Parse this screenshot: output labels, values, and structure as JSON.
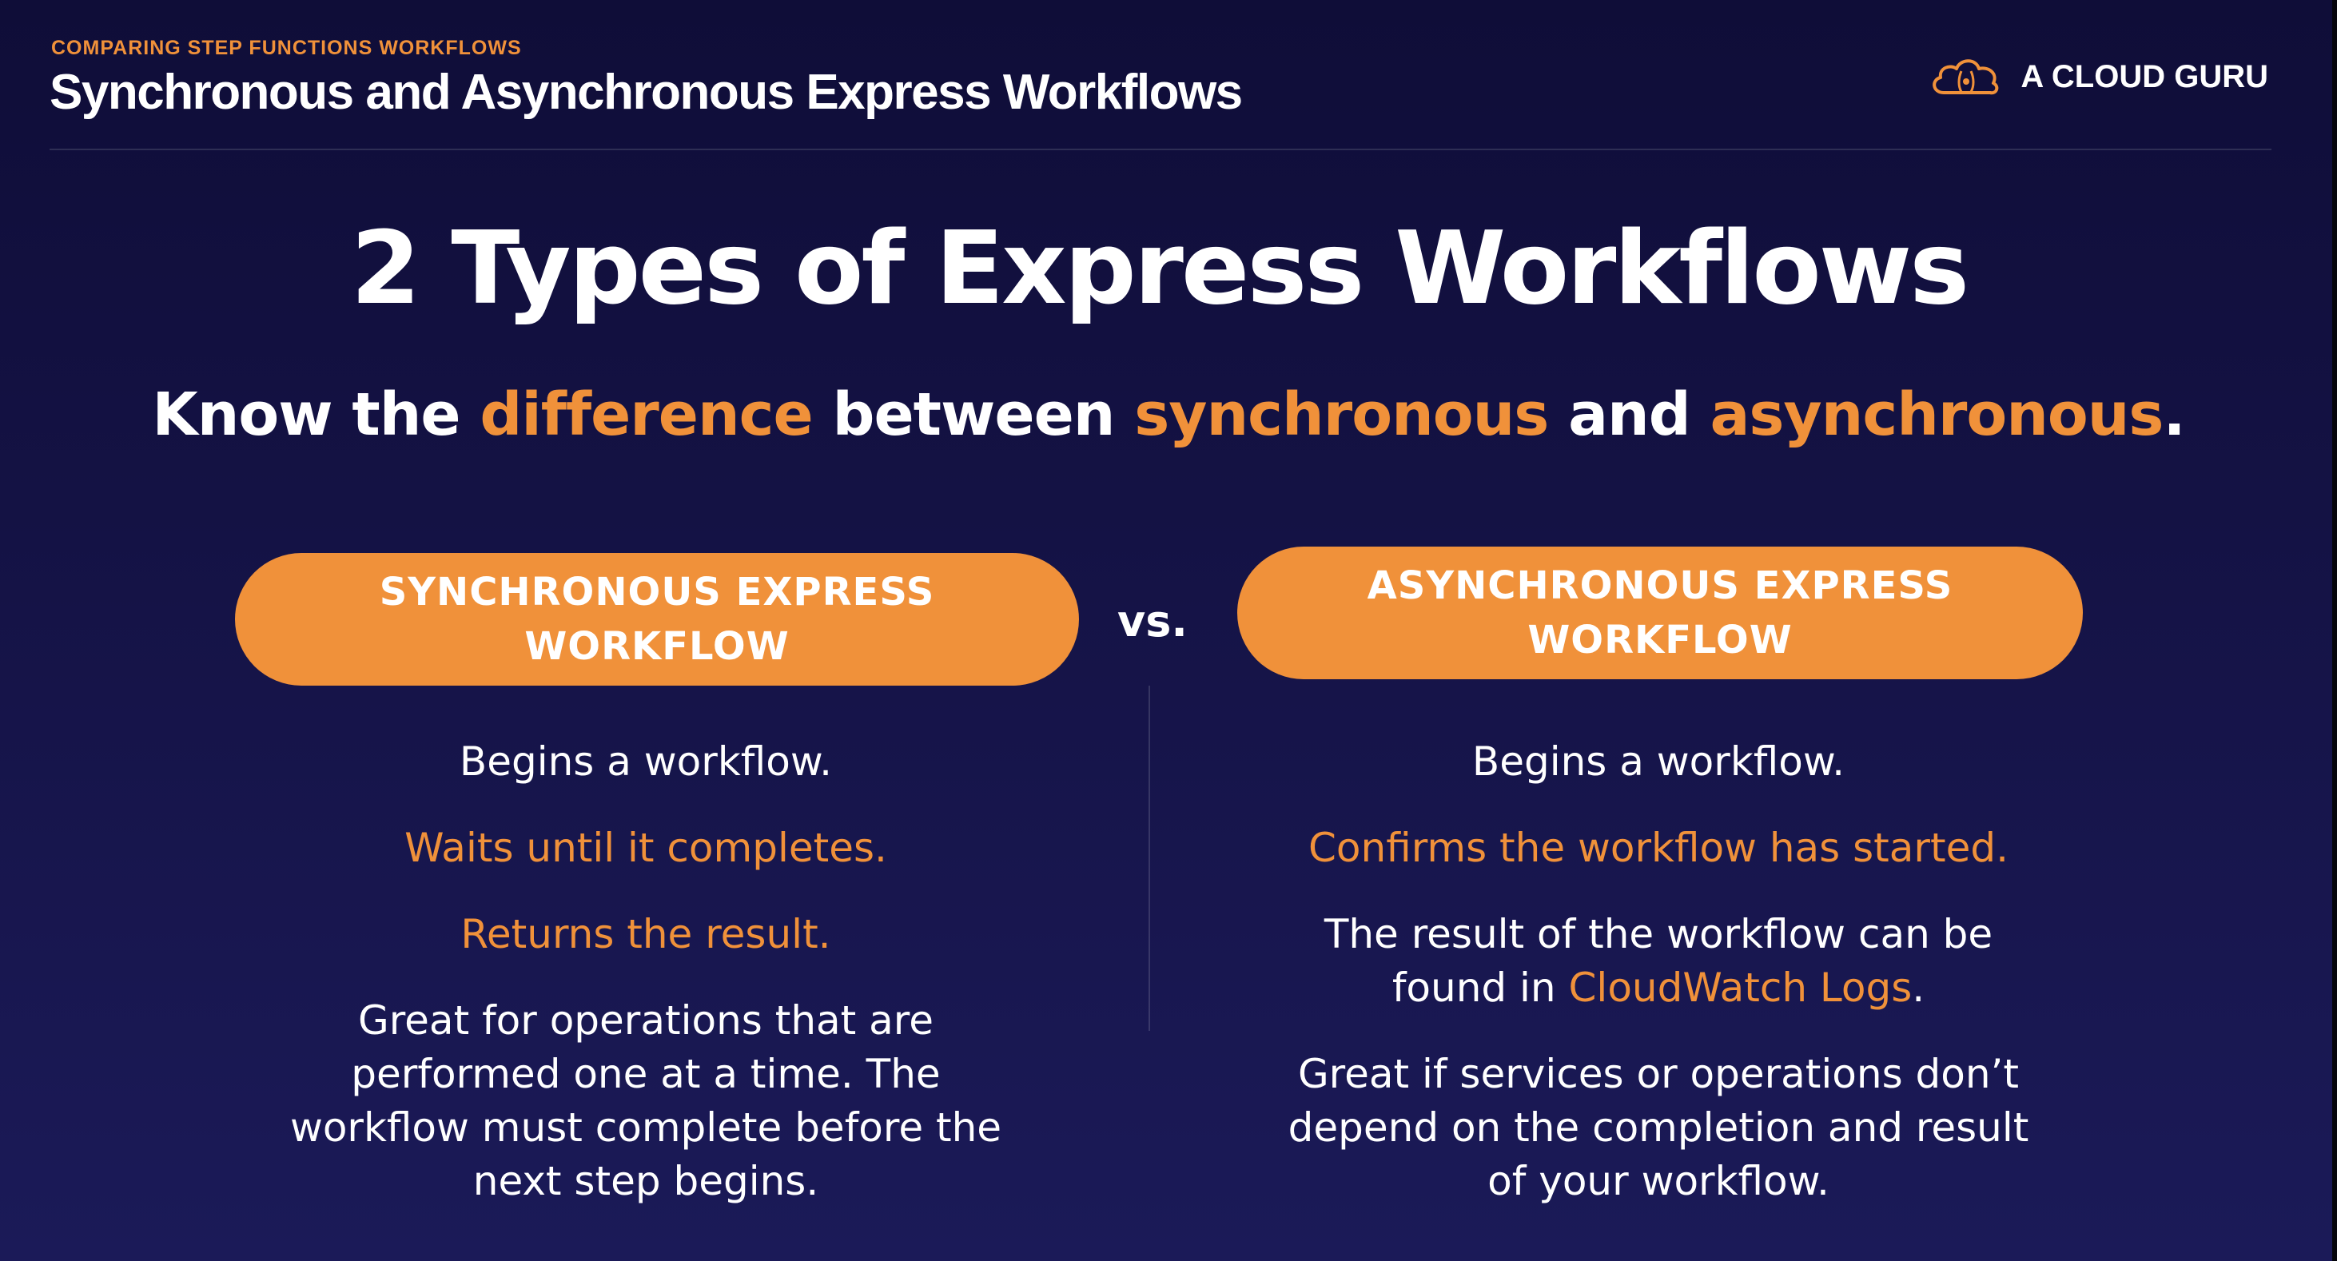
{
  "header": {
    "eyebrow": "COMPARING STEP FUNCTIONS WORKFLOWS",
    "title": "Synchronous and Asynchronous Express Workflows",
    "brand": {
      "name": "A CLOUD GURU",
      "logo_icon": "cloud-logo-icon",
      "accent_color": "#f0913a"
    }
  },
  "main": {
    "title": "2 Types of Express Workflows",
    "subtitle": {
      "part1": "Know the ",
      "highlight1": "difference",
      "part2": " between ",
      "highlight2": "synchronous",
      "part3": " and ",
      "highlight3": "asynchronous",
      "part4": "."
    },
    "vs_label": "vs.",
    "left": {
      "pill_label": "SYNCHRONOUS EXPRESS WORKFLOW",
      "line1": "Begins a workflow.",
      "line2": "Waits until it completes.",
      "line3": "Returns the result.",
      "line4": "Great for operations that are performed one at a time. The workflow must complete before the next step begins."
    },
    "right": {
      "pill_label": "ASYNCHRONOUS EXPRESS WORKFLOW",
      "line1": "Begins a workflow.",
      "line2": "Confirms the workflow has started.",
      "line3_part1": "The result of the workflow can be found in ",
      "line3_highlight": "CloudWatch Logs",
      "line3_part2": ".",
      "line4": "Great if services or operations don’t depend on the completion and result of your workflow."
    }
  },
  "colors": {
    "background_top": "#0f0d38",
    "background_bottom": "#1b1a58",
    "accent": "#f0913a",
    "text": "#ffffff"
  }
}
